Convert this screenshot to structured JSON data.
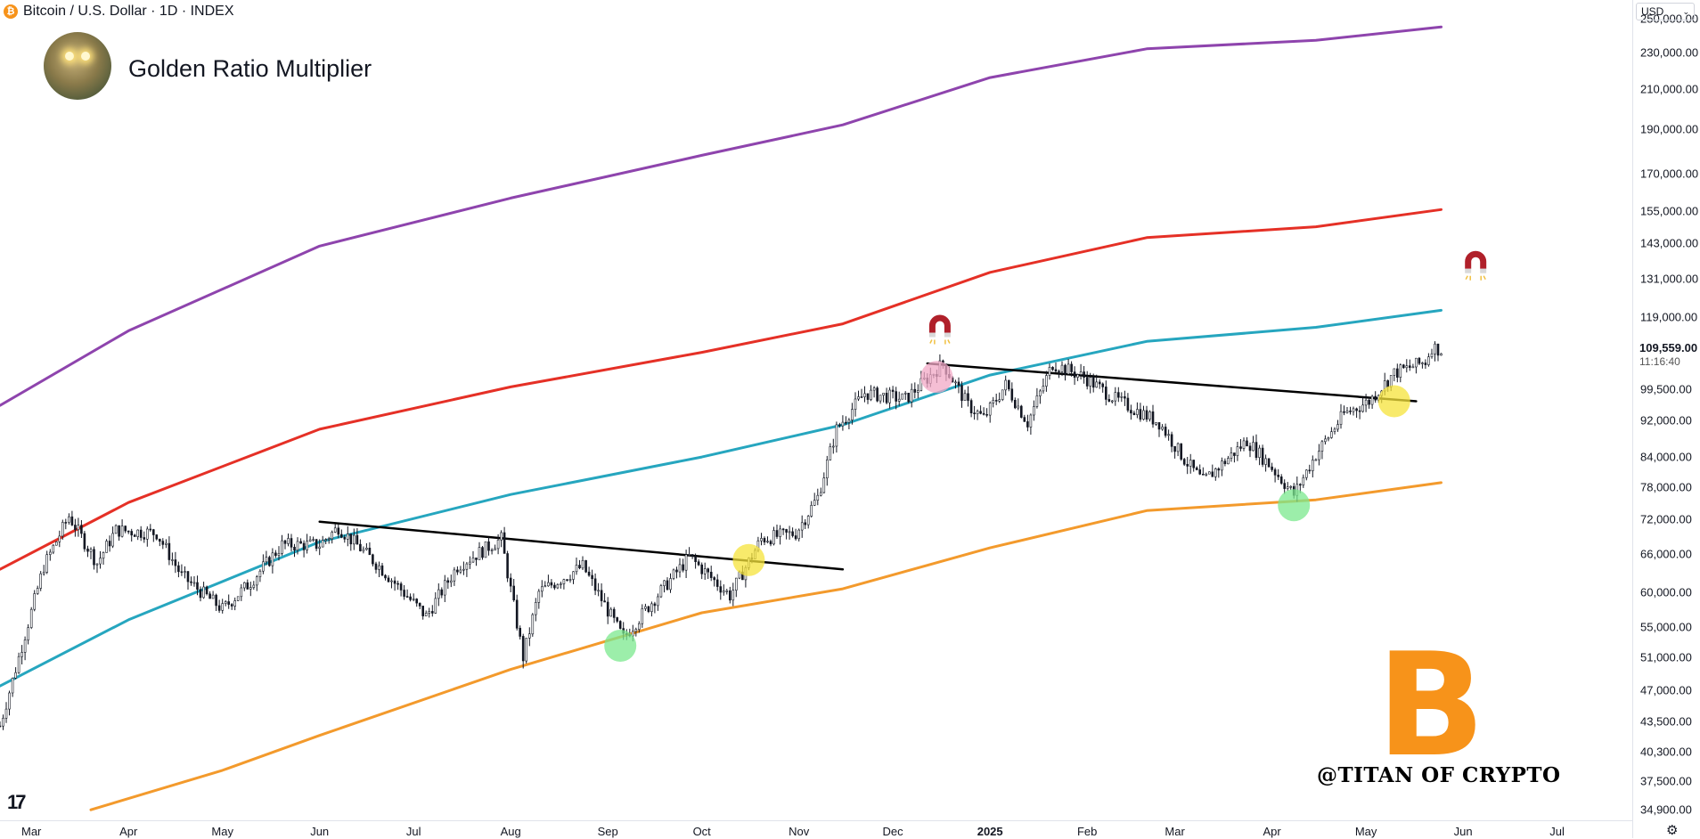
{
  "header": {
    "symbol_title": "Bitcoin / U.S. Dollar · 1D · INDEX",
    "symbol_icon": "bitcoin-coin-icon",
    "indicator_title": "Golden Ratio Multiplier"
  },
  "price_axis": {
    "currency": "USD",
    "last_price": "109,559.00",
    "countdown": "11:16:40",
    "tick_labels": [
      "250,000.00",
      "230,000.00",
      "210,000.00",
      "190,000.00",
      "170,000.00",
      "155,000.00",
      "143,000.00",
      "131,000.00",
      "119,000.00",
      "99,500.00",
      "92,000.00",
      "84,000.00",
      "78,000.00",
      "72,000.00",
      "66,000.00",
      "60,000.00",
      "55,000.00",
      "51,000.00",
      "47,000.00",
      "43,500.00",
      "40,300.00",
      "37,500.00",
      "34,900.00"
    ]
  },
  "time_axis": {
    "tick_labels": [
      "Mar",
      "Apr",
      "May",
      "Jun",
      "Jul",
      "Aug",
      "Sep",
      "Oct",
      "Nov",
      "Dec",
      "2025",
      "Feb",
      "Mar",
      "Apr",
      "May",
      "Jun",
      "Jul"
    ]
  },
  "watermark": {
    "text": "@TITAN OF CRYPTO",
    "logo_glyph": "B",
    "logo_color": "#f7931a"
  },
  "colors": {
    "purple_band": "#8e44ad",
    "red_band": "#e53026",
    "cyan_band": "#26a6bf",
    "orange_band": "#f39a2c",
    "trendline": "#000000",
    "highlight_yellow": "#f6e33a",
    "highlight_green": "#7be88e",
    "highlight_pink": "#f2a8c6",
    "magnet_red": "#b0202a"
  },
  "chart_data": {
    "type": "line",
    "title": "Golden Ratio Multiplier",
    "y_scale": "log",
    "ylim": [
      34000,
      262000
    ],
    "xlim": [
      "2024-02-20",
      "2025-07-25"
    ],
    "x_ticks": [
      "2024-03-01",
      "2024-04-01",
      "2024-05-01",
      "2024-06-01",
      "2024-07-01",
      "2024-08-01",
      "2024-09-01",
      "2024-10-01",
      "2024-11-01",
      "2024-12-01",
      "2025-01-01",
      "2025-02-01",
      "2025-03-01",
      "2025-04-01",
      "2025-05-01",
      "2025-06-01",
      "2025-07-01"
    ],
    "y_ticks": [
      250000,
      230000,
      210000,
      190000,
      170000,
      155000,
      143000,
      131000,
      119000,
      99500,
      92000,
      84000,
      78000,
      72000,
      66000,
      60000,
      55000,
      51000,
      47000,
      43500,
      40300,
      37500,
      34900
    ],
    "grid": false,
    "series": [
      {
        "role": "band",
        "color": "#8e44ad",
        "points": [
          [
            "2024-02-20",
            95500
          ],
          [
            "2024-04-01",
            115000
          ],
          [
            "2024-06-01",
            142000
          ],
          [
            "2024-08-01",
            160000
          ],
          [
            "2024-10-01",
            178000
          ],
          [
            "2024-11-15",
            192000
          ],
          [
            "2025-01-01",
            216000
          ],
          [
            "2025-02-20",
            232000
          ],
          [
            "2025-04-15",
            237000
          ],
          [
            "2025-05-25",
            245000
          ]
        ]
      },
      {
        "role": "band",
        "color": "#e53026",
        "points": [
          [
            "2024-02-20",
            63500
          ],
          [
            "2024-04-01",
            75000
          ],
          [
            "2024-06-01",
            90000
          ],
          [
            "2024-08-01",
            100000
          ],
          [
            "2024-10-01",
            109000
          ],
          [
            "2024-11-15",
            117000
          ],
          [
            "2025-01-01",
            133000
          ],
          [
            "2025-02-20",
            145000
          ],
          [
            "2025-04-15",
            149000
          ],
          [
            "2025-05-25",
            155500
          ]
        ]
      },
      {
        "role": "band",
        "color": "#26a6bf",
        "points": [
          [
            "2024-02-20",
            47500
          ],
          [
            "2024-04-01",
            56000
          ],
          [
            "2024-06-01",
            68000
          ],
          [
            "2024-08-01",
            76500
          ],
          [
            "2024-10-01",
            84000
          ],
          [
            "2024-11-15",
            91000
          ],
          [
            "2025-01-01",
            103000
          ],
          [
            "2025-02-20",
            112000
          ],
          [
            "2025-04-15",
            116000
          ],
          [
            "2025-05-25",
            121000
          ]
        ]
      },
      {
        "role": "band",
        "color": "#f39a2c",
        "points": [
          [
            "2024-03-20",
            34900
          ],
          [
            "2024-05-01",
            38500
          ],
          [
            "2024-06-01",
            42000
          ],
          [
            "2024-08-01",
            49500
          ],
          [
            "2024-10-01",
            57000
          ],
          [
            "2024-11-15",
            60500
          ],
          [
            "2025-01-01",
            67000
          ],
          [
            "2025-02-20",
            73500
          ],
          [
            "2025-04-15",
            75500
          ],
          [
            "2025-05-25",
            78800
          ]
        ]
      },
      {
        "role": "price",
        "color": "#131722",
        "points": [
          [
            "2024-02-20",
            43000
          ],
          [
            "2024-02-26",
            51000
          ],
          [
            "2024-03-05",
            64000
          ],
          [
            "2024-03-13",
            72500
          ],
          [
            "2024-03-22",
            64500
          ],
          [
            "2024-03-28",
            70000
          ],
          [
            "2024-04-10",
            69500
          ],
          [
            "2024-04-18",
            62500
          ],
          [
            "2024-05-01",
            57500
          ],
          [
            "2024-05-10",
            61500
          ],
          [
            "2024-05-20",
            67500
          ],
          [
            "2024-06-01",
            67500
          ],
          [
            "2024-06-07",
            70500
          ],
          [
            "2024-06-20",
            64000
          ],
          [
            "2024-07-05",
            56500
          ],
          [
            "2024-07-15",
            64000
          ],
          [
            "2024-07-29",
            68500
          ],
          [
            "2024-08-05",
            51000
          ],
          [
            "2024-08-10",
            60000
          ],
          [
            "2024-08-24",
            64000
          ],
          [
            "2024-09-06",
            53500
          ],
          [
            "2024-09-15",
            58500
          ],
          [
            "2024-09-27",
            65500
          ],
          [
            "2024-10-10",
            59500
          ],
          [
            "2024-10-20",
            68500
          ],
          [
            "2024-10-31",
            69500
          ],
          [
            "2024-11-07",
            76000
          ],
          [
            "2024-11-13",
            90000
          ],
          [
            "2024-11-22",
            98500
          ],
          [
            "2024-12-05",
            97000
          ],
          [
            "2024-12-17",
            106000
          ],
          [
            "2024-12-25",
            95500
          ],
          [
            "2024-12-30",
            92500
          ],
          [
            "2025-01-06",
            100500
          ],
          [
            "2025-01-13",
            91500
          ],
          [
            "2025-01-21",
            106000
          ],
          [
            "2025-01-31",
            102500
          ],
          [
            "2025-02-10",
            97000
          ],
          [
            "2025-02-24",
            91500
          ],
          [
            "2025-03-04",
            83500
          ],
          [
            "2025-03-10",
            79000
          ],
          [
            "2025-03-24",
            87500
          ],
          [
            "2025-03-31",
            82500
          ],
          [
            "2025-04-08",
            76500
          ],
          [
            "2025-04-15",
            84500
          ],
          [
            "2025-04-24",
            93500
          ],
          [
            "2025-05-02",
            96500
          ],
          [
            "2025-05-10",
            103500
          ],
          [
            "2025-05-20",
            106500
          ],
          [
            "2025-05-22",
            110500
          ],
          [
            "2025-05-25",
            109559
          ]
        ]
      },
      {
        "role": "trendline",
        "color": "#000000",
        "points": [
          [
            "2024-06-01",
            71500
          ],
          [
            "2024-11-15",
            63500
          ]
        ]
      },
      {
        "role": "trendline",
        "color": "#000000",
        "points": [
          [
            "2024-12-12",
            106000
          ],
          [
            "2025-05-17",
            96500
          ]
        ]
      }
    ],
    "markers": [
      {
        "kind": "circle",
        "color": "#7be88e",
        "date": "2024-09-05",
        "value": 52500
      },
      {
        "kind": "circle",
        "color": "#f6e33a",
        "date": "2024-10-16",
        "value": 65000
      },
      {
        "kind": "circle",
        "color": "#f2a8c6",
        "date": "2024-12-15",
        "value": 102500
      },
      {
        "kind": "circle",
        "color": "#7be88e",
        "date": "2025-04-08",
        "value": 74500
      },
      {
        "kind": "circle",
        "color": "#f6e33a",
        "date": "2025-05-10",
        "value": 96500
      },
      {
        "kind": "magnet-icon",
        "date": "2024-12-16",
        "value": 116000
      },
      {
        "kind": "magnet-icon",
        "date": "2025-06-05",
        "value": 136000
      }
    ]
  }
}
